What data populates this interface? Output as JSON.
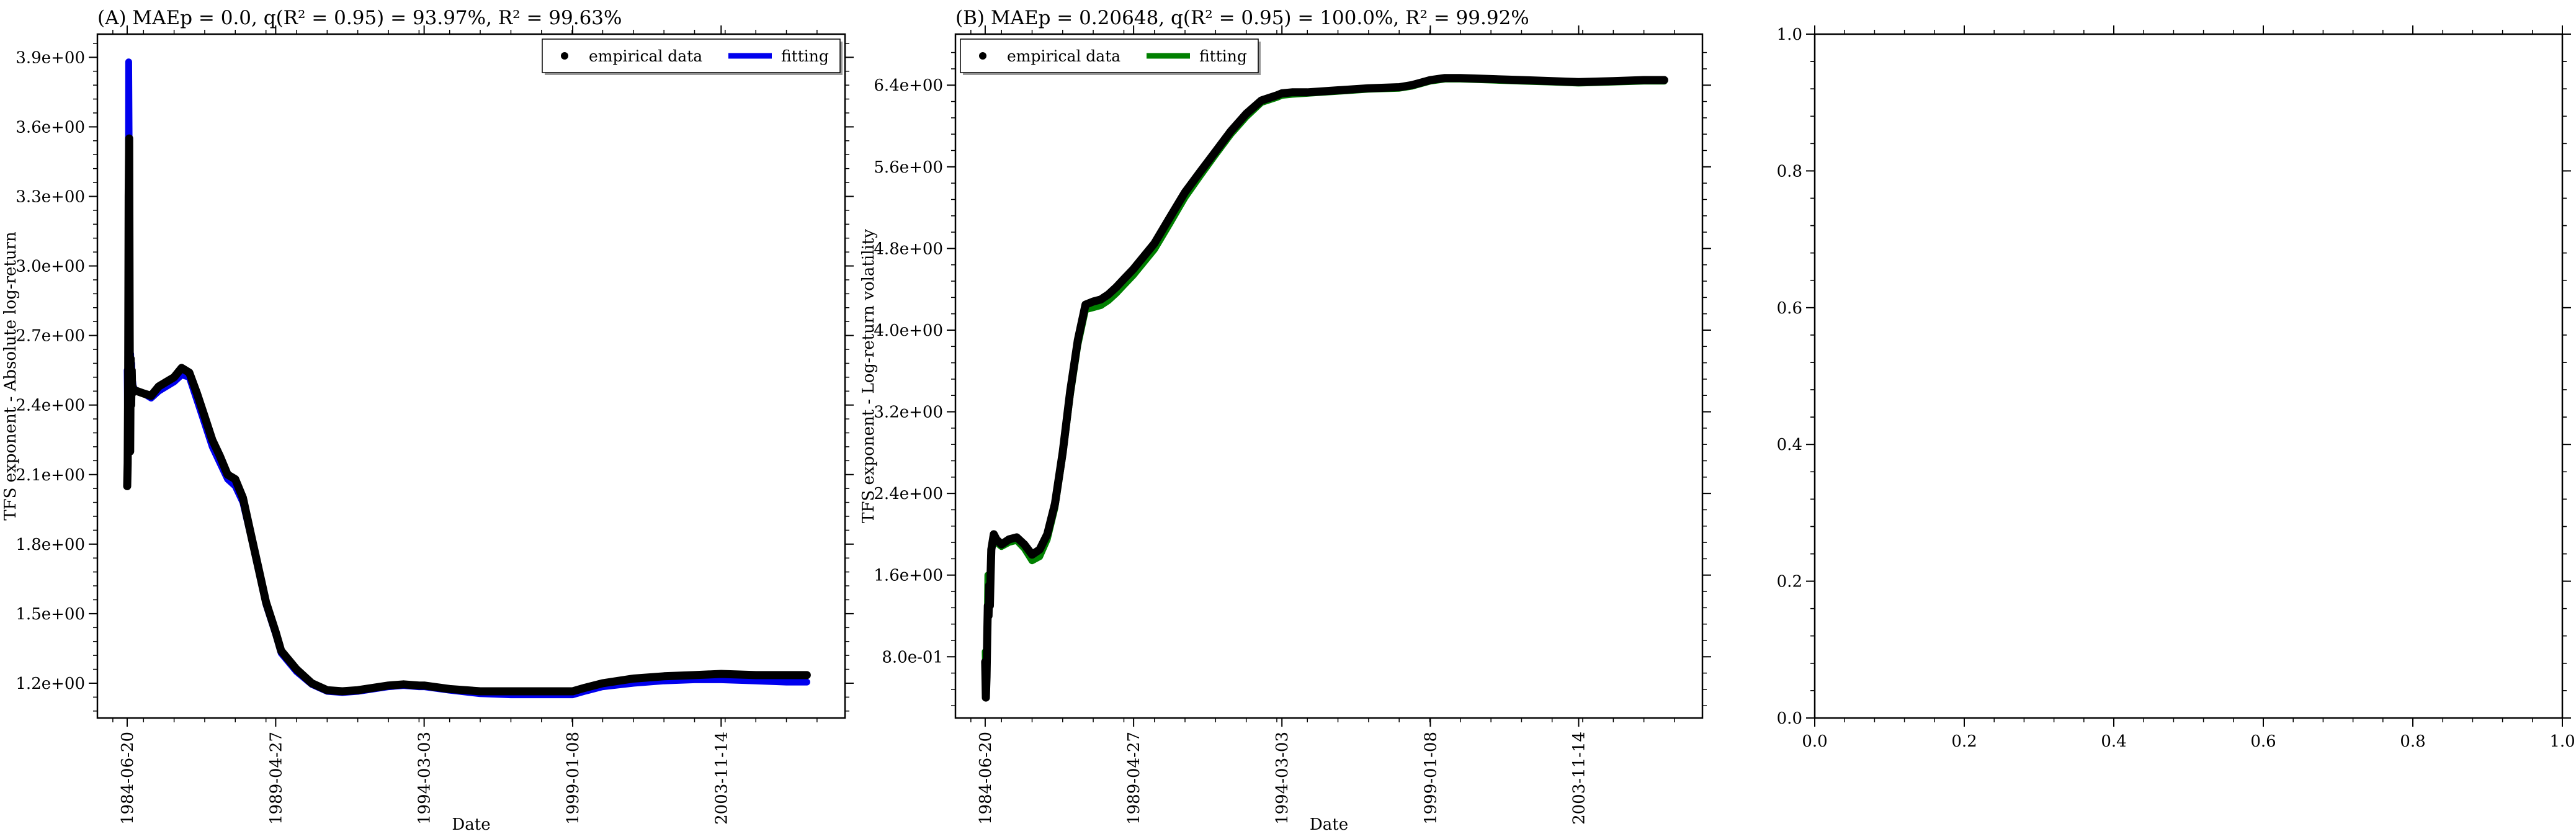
{
  "chart_data": [
    {
      "type": "line",
      "title": "(A) MAEp = 0.0, q(R² = 0.95) = 93.97%, R² = 99.63%",
      "xlabel": "Date",
      "ylabel": "TFS exponent - Absolute log-return",
      "ylim": [
        1.05,
        4.0
      ],
      "ytick_labels": [
        "1.2e+00",
        "1.5e+00",
        "1.8e+00",
        "2.1e+00",
        "2.4e+00",
        "2.7e+00",
        "3.0e+00",
        "3.3e+00",
        "3.6e+00",
        "3.9e+00"
      ],
      "ytick_values": [
        1.2,
        1.5,
        1.8,
        2.1,
        2.4,
        2.7,
        3.0,
        3.3,
        3.6,
        3.9
      ],
      "xlim": [
        "1983-07-01",
        "2007-12-01"
      ],
      "xtick_labels": [
        "1984-06-20",
        "1989-04-27",
        "1994-03-03",
        "1999-01-08",
        "2003-11-14"
      ],
      "legend": {
        "position": "top-right",
        "entries": [
          "empirical data",
          "fitting"
        ]
      },
      "series": [
        {
          "name": "empirical data",
          "style": "points",
          "color": "#000000",
          "x": [
            "1984-06-20",
            "1984-06-26",
            "1984-07-02",
            "1984-07-08",
            "1984-07-14",
            "1984-07-20",
            "1984-07-26",
            "1984-08-01",
            "1984-08-07",
            "1984-08-13",
            "1984-08-19",
            "1984-08-25",
            "1984-08-31",
            "1984-09-15",
            "1984-10-15",
            "1985-01-01",
            "1985-04-01",
            "1985-07-01",
            "1985-10-01",
            "1986-01-01",
            "1986-04-01",
            "1986-07-01",
            "1986-10-01",
            "1987-01-01",
            "1987-04-01",
            "1987-07-01",
            "1987-10-01",
            "1988-01-01",
            "1988-04-01",
            "1988-07-01",
            "1988-10-01",
            "1989-01-01",
            "1989-04-27",
            "1989-07-01",
            "1990-01-01",
            "1990-07-01",
            "1991-01-01",
            "1991-07-01",
            "1992-01-01",
            "1993-01-01",
            "1993-07-01",
            "1994-01-01",
            "1994-03-03",
            "1995-01-01",
            "1996-01-01",
            "1997-01-01",
            "1998-01-01",
            "1999-01-08",
            "1999-06-01",
            "2000-01-01",
            "2001-01-01",
            "2002-01-01",
            "2003-01-01",
            "2003-11-14",
            "2005-01-01",
            "2006-01-01",
            "2006-09-01"
          ],
          "y": [
            2.05,
            2.15,
            2.5,
            3.3,
            3.55,
            2.7,
            2.2,
            2.6,
            2.4,
            2.55,
            2.45,
            2.48,
            2.46,
            2.46,
            2.46,
            2.45,
            2.44,
            2.48,
            2.5,
            2.52,
            2.56,
            2.54,
            2.45,
            2.35,
            2.25,
            2.18,
            2.1,
            2.08,
            2.0,
            1.85,
            1.7,
            1.55,
            1.42,
            1.34,
            1.26,
            1.2,
            1.17,
            1.165,
            1.17,
            1.19,
            1.195,
            1.19,
            1.19,
            1.175,
            1.165,
            1.165,
            1.165,
            1.165,
            1.18,
            1.2,
            1.22,
            1.23,
            1.235,
            1.24,
            1.235,
            1.235,
            1.235
          ]
        },
        {
          "name": "fitting",
          "style": "line",
          "color": "#0000ee",
          "x": [
            "1984-06-20",
            "1984-06-26",
            "1984-07-02",
            "1984-07-08",
            "1984-07-14",
            "1984-07-20",
            "1984-07-26",
            "1984-08-01",
            "1984-08-07",
            "1984-08-13",
            "1984-08-19",
            "1984-08-25",
            "1984-08-31",
            "1984-09-15",
            "1984-10-15",
            "1985-01-01",
            "1985-04-01",
            "1985-07-01",
            "1985-10-01",
            "1986-01-01",
            "1986-04-01",
            "1986-07-01",
            "1986-10-01",
            "1987-01-01",
            "1987-04-01",
            "1987-07-01",
            "1987-10-01",
            "1988-01-01",
            "1988-04-01",
            "1988-07-01",
            "1988-10-01",
            "1989-01-01",
            "1989-04-27",
            "1989-07-01",
            "1990-01-01",
            "1990-07-01",
            "1991-01-01",
            "1991-07-01",
            "1992-01-01",
            "1993-01-01",
            "1993-07-01",
            "1994-01-01",
            "1994-03-03",
            "1995-01-01",
            "1996-01-01",
            "1997-01-01",
            "1998-01-01",
            "1999-01-08",
            "1999-06-01",
            "2000-01-01",
            "2001-01-01",
            "2002-01-01",
            "2003-01-01",
            "2003-11-14",
            "2005-01-01",
            "2006-01-01",
            "2006-09-01"
          ],
          "y": [
            2.55,
            2.3,
            2.6,
            3.88,
            3.5,
            2.75,
            2.3,
            2.62,
            2.45,
            2.58,
            2.5,
            2.5,
            2.48,
            2.47,
            2.46,
            2.45,
            2.43,
            2.46,
            2.48,
            2.5,
            2.53,
            2.52,
            2.42,
            2.32,
            2.22,
            2.15,
            2.08,
            2.05,
            1.98,
            1.84,
            1.69,
            1.54,
            1.41,
            1.33,
            1.25,
            1.195,
            1.165,
            1.16,
            1.165,
            1.185,
            1.19,
            1.185,
            1.185,
            1.17,
            1.155,
            1.15,
            1.15,
            1.15,
            1.165,
            1.185,
            1.2,
            1.21,
            1.215,
            1.215,
            1.21,
            1.205,
            1.205
          ]
        }
      ]
    },
    {
      "type": "line",
      "title": "(B) MAEp = 0.20648, q(R² = 0.95) = 100.0%, R² = 99.92%",
      "xlabel": "Date",
      "ylabel": "TFS exponent - Log-return volatility",
      "ylim": [
        0.2,
        6.9
      ],
      "ytick_labels": [
        "8.0e-01",
        "1.6e+00",
        "2.4e+00",
        "3.2e+00",
        "4.0e+00",
        "4.8e+00",
        "5.6e+00",
        "6.4e+00"
      ],
      "ytick_values": [
        0.8,
        1.6,
        2.4,
        3.2,
        4.0,
        4.8,
        5.6,
        6.4
      ],
      "xlim": [
        "1983-07-01",
        "2007-12-01"
      ],
      "xtick_labels": [
        "1984-06-20",
        "1989-04-27",
        "1994-03-03",
        "1999-01-08",
        "2003-11-14"
      ],
      "legend": {
        "position": "top-left",
        "entries": [
          "empirical data",
          "fitting"
        ]
      },
      "series": [
        {
          "name": "empirical data",
          "style": "points",
          "color": "#000000",
          "x": [
            "1984-06-20",
            "1984-06-28",
            "1984-07-06",
            "1984-07-14",
            "1984-07-22",
            "1984-07-30",
            "1984-08-07",
            "1984-08-15",
            "1984-08-23",
            "1984-09-01",
            "1984-10-01",
            "1984-11-01",
            "1985-01-01",
            "1985-04-01",
            "1985-07-01",
            "1985-10-01",
            "1986-01-01",
            "1986-04-01",
            "1986-07-01",
            "1986-10-01",
            "1987-01-01",
            "1987-04-01",
            "1987-07-01",
            "1987-10-01",
            "1988-01-01",
            "1988-04-01",
            "1988-07-01",
            "1988-10-01",
            "1989-01-01",
            "1989-04-27",
            "1990-01-01",
            "1990-07-01",
            "1991-01-01",
            "1991-07-01",
            "1992-01-01",
            "1992-07-01",
            "1993-01-01",
            "1993-07-01",
            "1994-01-01",
            "1994-03-03",
            "1994-07-01",
            "1995-01-01",
            "1996-01-01",
            "1997-01-01",
            "1998-01-01",
            "1998-06-01",
            "1999-01-08",
            "1999-07-01",
            "2000-01-01",
            "2001-01-01",
            "2002-01-01",
            "2003-01-01",
            "2003-11-14",
            "2005-01-01",
            "2006-01-01",
            "2006-09-01"
          ],
          "y": [
            0.75,
            0.4,
            0.6,
            1.0,
            1.3,
            1.2,
            1.5,
            1.3,
            1.6,
            1.85,
            2.0,
            1.95,
            1.9,
            1.95,
            1.97,
            1.9,
            1.8,
            1.85,
            2.0,
            2.3,
            2.8,
            3.4,
            3.9,
            4.25,
            4.28,
            4.3,
            4.35,
            4.42,
            4.5,
            4.6,
            4.85,
            5.1,
            5.35,
            5.55,
            5.75,
            5.95,
            6.12,
            6.25,
            6.3,
            6.32,
            6.33,
            6.33,
            6.35,
            6.37,
            6.38,
            6.4,
            6.45,
            6.47,
            6.47,
            6.46,
            6.45,
            6.44,
            6.43,
            6.44,
            6.45,
            6.45
          ]
        },
        {
          "name": "fitting",
          "style": "line",
          "color": "#008000",
          "x": [
            "1984-06-20",
            "1984-06-28",
            "1984-07-06",
            "1984-07-14",
            "1984-07-22",
            "1984-07-30",
            "1984-08-07",
            "1984-08-15",
            "1984-08-23",
            "1984-09-01",
            "1984-10-01",
            "1984-11-01",
            "1985-01-01",
            "1985-04-01",
            "1985-07-01",
            "1985-10-01",
            "1986-01-01",
            "1986-04-01",
            "1986-07-01",
            "1986-10-01",
            "1987-01-01",
            "1987-04-01",
            "1987-07-01",
            "1987-10-01",
            "1988-01-01",
            "1988-04-01",
            "1988-07-01",
            "1988-10-01",
            "1989-01-01",
            "1989-04-27",
            "1990-01-01",
            "1990-07-01",
            "1991-01-01",
            "1991-07-01",
            "1992-01-01",
            "1992-07-01",
            "1993-01-01",
            "1993-07-01",
            "1994-01-01",
            "1994-03-03",
            "1994-07-01",
            "1995-01-01",
            "1996-01-01",
            "1997-01-01",
            "1998-01-01",
            "1998-06-01",
            "1999-01-08",
            "1999-07-01",
            "2000-01-01",
            "2001-01-01",
            "2002-01-01",
            "2003-01-01",
            "2003-11-14",
            "2005-01-01",
            "2006-01-01",
            "2006-09-01"
          ],
          "y": [
            0.85,
            0.55,
            0.7,
            1.1,
            1.6,
            1.4,
            1.55,
            1.35,
            1.62,
            1.83,
            1.97,
            1.92,
            1.88,
            1.92,
            1.94,
            1.86,
            1.74,
            1.78,
            1.95,
            2.26,
            2.76,
            3.35,
            3.85,
            4.2,
            4.22,
            4.24,
            4.29,
            4.36,
            4.44,
            4.54,
            4.79,
            5.04,
            5.3,
            5.51,
            5.72,
            5.92,
            6.09,
            6.23,
            6.28,
            6.3,
            6.31,
            6.32,
            6.34,
            6.36,
            6.37,
            6.39,
            6.44,
            6.46,
            6.46,
            6.45,
            6.44,
            6.43,
            6.42,
            6.43,
            6.44,
            6.44
          ]
        }
      ]
    },
    {
      "type": "line",
      "title": "",
      "xlabel": "",
      "ylabel": "",
      "xlim": [
        0.0,
        1.0
      ],
      "ylim": [
        0.0,
        1.0
      ],
      "xtick_labels": [
        "0.0",
        "0.2",
        "0.4",
        "0.6",
        "0.8",
        "1.0"
      ],
      "xtick_values": [
        0.0,
        0.2,
        0.4,
        0.6,
        0.8,
        1.0
      ],
      "ytick_labels": [
        "0.0",
        "0.2",
        "0.4",
        "0.6",
        "0.8",
        "1.0"
      ],
      "ytick_values": [
        0.0,
        0.2,
        0.4,
        0.6,
        0.8,
        1.0
      ],
      "series": []
    }
  ]
}
